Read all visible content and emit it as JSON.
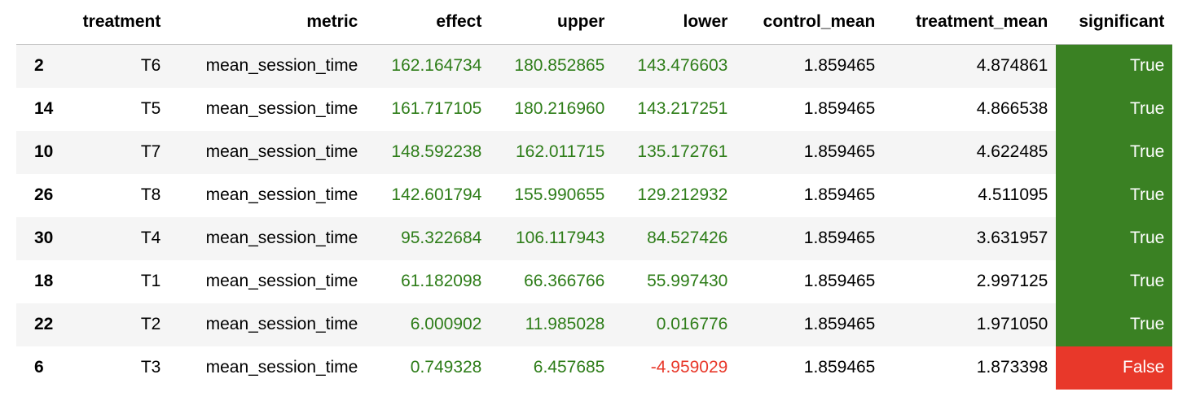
{
  "table": {
    "columns": [
      "",
      "treatment",
      "metric",
      "effect",
      "upper",
      "lower",
      "control_mean",
      "treatment_mean",
      "significant"
    ],
    "rows": [
      {
        "index": "2",
        "treatment": "T6",
        "metric": "mean_session_time",
        "effect": "162.164734",
        "upper": "180.852865",
        "lower": "143.476603",
        "control_mean": "1.859465",
        "treatment_mean": "4.874861",
        "significant": "True"
      },
      {
        "index": "14",
        "treatment": "T5",
        "metric": "mean_session_time",
        "effect": "161.717105",
        "upper": "180.216960",
        "lower": "143.217251",
        "control_mean": "1.859465",
        "treatment_mean": "4.866538",
        "significant": "True"
      },
      {
        "index": "10",
        "treatment": "T7",
        "metric": "mean_session_time",
        "effect": "148.592238",
        "upper": "162.011715",
        "lower": "135.172761",
        "control_mean": "1.859465",
        "treatment_mean": "4.622485",
        "significant": "True"
      },
      {
        "index": "26",
        "treatment": "T8",
        "metric": "mean_session_time",
        "effect": "142.601794",
        "upper": "155.990655",
        "lower": "129.212932",
        "control_mean": "1.859465",
        "treatment_mean": "4.511095",
        "significant": "True"
      },
      {
        "index": "30",
        "treatment": "T4",
        "metric": "mean_session_time",
        "effect": "95.322684",
        "upper": "106.117943",
        "lower": "84.527426",
        "control_mean": "1.859465",
        "treatment_mean": "3.631957",
        "significant": "True"
      },
      {
        "index": "18",
        "treatment": "T1",
        "metric": "mean_session_time",
        "effect": "61.182098",
        "upper": "66.366766",
        "lower": "55.997430",
        "control_mean": "1.859465",
        "treatment_mean": "2.997125",
        "significant": "True"
      },
      {
        "index": "22",
        "treatment": "T2",
        "metric": "mean_session_time",
        "effect": "6.000902",
        "upper": "11.985028",
        "lower": "0.016776",
        "control_mean": "1.859465",
        "treatment_mean": "1.971050",
        "significant": "True"
      },
      {
        "index": "6",
        "treatment": "T3",
        "metric": "mean_session_time",
        "effect": "0.749328",
        "upper": "6.457685",
        "lower": "-4.959029",
        "control_mean": "1.859465",
        "treatment_mean": "1.873398",
        "significant": "False"
      }
    ]
  },
  "colors": {
    "positive_text": "#2e7d19",
    "negative_text": "#e8382a",
    "significant_true_bg": "#3a8123",
    "significant_false_bg": "#e8382a",
    "stripe_bg": "#f5f5f5"
  }
}
